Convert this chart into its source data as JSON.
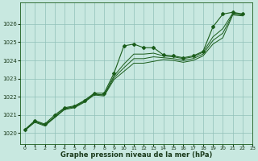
{
  "xlabel": "Graphe pression niveau de la mer (hPa)",
  "ylim": [
    1019.4,
    1027.2
  ],
  "xlim": [
    -0.5,
    23
  ],
  "yticks": [
    1020,
    1021,
    1022,
    1023,
    1024,
    1025,
    1026
  ],
  "xticks": [
    0,
    1,
    2,
    3,
    4,
    5,
    6,
    7,
    8,
    9,
    10,
    11,
    12,
    13,
    14,
    15,
    16,
    17,
    18,
    19,
    20,
    21,
    22,
    23
  ],
  "background_color": "#c8e8e0",
  "grid_color": "#90c0b8",
  "line_color": "#1a5c1a",
  "line1": [
    1020.2,
    1020.7,
    1020.5,
    1021.0,
    1021.4,
    1021.5,
    1021.8,
    1022.2,
    1022.2,
    1023.3,
    1024.8,
    1024.9,
    1024.7,
    1024.7,
    1024.3,
    1024.25,
    1024.15,
    1024.25,
    1024.5,
    1025.85,
    1026.55,
    1026.65,
    1026.55
  ],
  "line2": [
    1020.2,
    1020.65,
    1020.45,
    1020.9,
    1021.35,
    1021.45,
    1021.75,
    1022.15,
    1022.1,
    1023.15,
    1023.8,
    1024.35,
    1024.35,
    1024.4,
    1024.25,
    1024.2,
    1024.1,
    1024.2,
    1024.45,
    1025.3,
    1025.75,
    1026.6,
    1026.55
  ],
  "line3": [
    1020.2,
    1020.65,
    1020.45,
    1020.9,
    1021.35,
    1021.45,
    1021.75,
    1022.15,
    1022.1,
    1023.05,
    1023.6,
    1024.1,
    1024.1,
    1024.2,
    1024.15,
    1024.1,
    1024.0,
    1024.1,
    1024.35,
    1025.1,
    1025.5,
    1026.55,
    1026.5
  ],
  "line4": [
    1020.15,
    1020.6,
    1020.4,
    1020.85,
    1021.3,
    1021.4,
    1021.7,
    1022.1,
    1022.05,
    1022.95,
    1023.4,
    1023.85,
    1023.85,
    1023.95,
    1024.05,
    1024.0,
    1023.9,
    1024.0,
    1024.25,
    1024.9,
    1025.25,
    1026.5,
    1026.45
  ]
}
